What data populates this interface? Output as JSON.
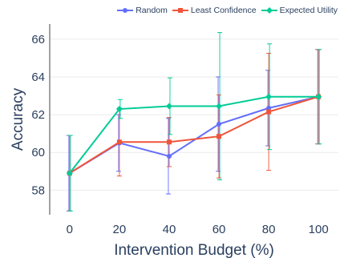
{
  "chart_data": {
    "type": "line",
    "title": "",
    "xlabel": "Intervention Budget (%)",
    "ylabel": "Accuracy",
    "x": [
      0,
      20,
      40,
      60,
      80,
      100
    ],
    "xlim": [
      -8,
      108
    ],
    "ylim": [
      56.7,
      66.8
    ],
    "xticks": [
      0,
      20,
      40,
      60,
      80,
      100
    ],
    "yticks": [
      58,
      60,
      62,
      64,
      66
    ],
    "grid": "horizontal",
    "legend_position": "top-right",
    "series": [
      {
        "name": "Random",
        "color": "#636efa",
        "marker": "circle",
        "values": [
          58.9,
          60.5,
          59.8,
          61.5,
          62.35,
          62.95
        ],
        "error": [
          2.0,
          1.5,
          2.0,
          2.5,
          2.0,
          2.5
        ]
      },
      {
        "name": "Least Confidence",
        "color": "#ef553b",
        "marker": "square",
        "values": [
          58.9,
          60.55,
          60.55,
          60.85,
          62.15,
          62.95
        ],
        "error": [
          2.0,
          1.8,
          1.3,
          2.2,
          3.1,
          2.5
        ]
      },
      {
        "name": "Expected Utility",
        "color": "#00cc96",
        "marker": "diamond",
        "values": [
          58.9,
          62.3,
          62.45,
          62.45,
          62.95,
          62.95
        ],
        "error": [
          2.0,
          0.5,
          1.5,
          3.9,
          2.8,
          2.5
        ]
      }
    ]
  }
}
